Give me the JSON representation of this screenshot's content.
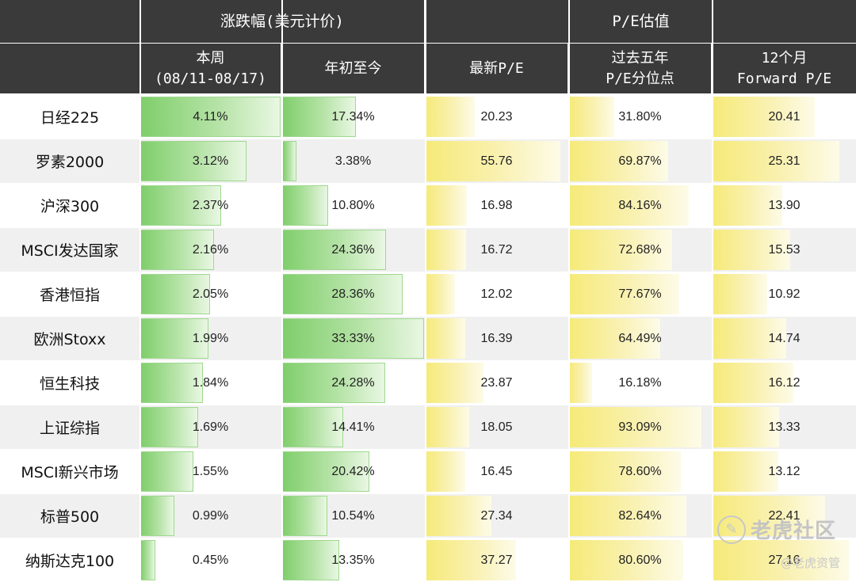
{
  "headers": {
    "group_change": "涨跌幅(美元计价)",
    "group_pe": "P/E估值",
    "col_week_line1": "本周",
    "col_week_line2": "(08/11-08/17)",
    "col_ytd": "年初至今",
    "col_latest_pe": "最新P/E",
    "col_pct_line1": "过去五年",
    "col_pct_line2": "P/E分位点",
    "col_fwd_line1": "12个月",
    "col_fwd_line2": "Forward P/E"
  },
  "colors": {
    "header_bg": "#3a3a3a",
    "green_bar": "#7fce6b",
    "yellow_bar": "#f6ea78",
    "row_alt": "#f0f0f0"
  },
  "chart_data": {
    "type": "table",
    "columns": [
      "本周 (08/11-08/17)",
      "年初至今",
      "最新P/E",
      "过去五年 P/E分位点",
      "12个月 Forward P/E"
    ],
    "rows": [
      {
        "index": "日经225",
        "week": "4.11%",
        "ytd": "17.34%",
        "pe": "20.23",
        "pct": "31.80%",
        "fwd": "20.41",
        "week_v": 4.11,
        "ytd_v": 17.34,
        "pe_v": 20.23,
        "pct_v": 31.8,
        "fwd_v": 20.41
      },
      {
        "index": "罗素2000",
        "week": "3.12%",
        "ytd": "3.38%",
        "pe": "55.76",
        "pct": "69.87%",
        "fwd": "25.31",
        "week_v": 3.12,
        "ytd_v": 3.38,
        "pe_v": 55.76,
        "pct_v": 69.87,
        "fwd_v": 25.31
      },
      {
        "index": "沪深300",
        "week": "2.37%",
        "ytd": "10.80%",
        "pe": "16.98",
        "pct": "84.16%",
        "fwd": "13.90",
        "week_v": 2.37,
        "ytd_v": 10.8,
        "pe_v": 16.98,
        "pct_v": 84.16,
        "fwd_v": 13.9
      },
      {
        "index": "MSCI发达国家",
        "week": "2.16%",
        "ytd": "24.36%",
        "pe": "16.72",
        "pct": "72.68%",
        "fwd": "15.53",
        "week_v": 2.16,
        "ytd_v": 24.36,
        "pe_v": 16.72,
        "pct_v": 72.68,
        "fwd_v": 15.53
      },
      {
        "index": "香港恒指",
        "week": "2.05%",
        "ytd": "28.36%",
        "pe": "12.02",
        "pct": "77.67%",
        "fwd": "10.92",
        "week_v": 2.05,
        "ytd_v": 28.36,
        "pe_v": 12.02,
        "pct_v": 77.67,
        "fwd_v": 10.92
      },
      {
        "index": "欧洲Stoxx",
        "week": "1.99%",
        "ytd": "33.33%",
        "pe": "16.39",
        "pct": "64.49%",
        "fwd": "14.74",
        "week_v": 1.99,
        "ytd_v": 33.33,
        "pe_v": 16.39,
        "pct_v": 64.49,
        "fwd_v": 14.74
      },
      {
        "index": "恒生科技",
        "week": "1.84%",
        "ytd": "24.28%",
        "pe": "23.87",
        "pct": "16.18%",
        "fwd": "16.12",
        "week_v": 1.84,
        "ytd_v": 24.28,
        "pe_v": 23.87,
        "pct_v": 16.18,
        "fwd_v": 16.12
      },
      {
        "index": "上证综指",
        "week": "1.69%",
        "ytd": "14.41%",
        "pe": "18.05",
        "pct": "93.09%",
        "fwd": "13.33",
        "week_v": 1.69,
        "ytd_v": 14.41,
        "pe_v": 18.05,
        "pct_v": 93.09,
        "fwd_v": 13.33
      },
      {
        "index": "MSCI新兴市场",
        "week": "1.55%",
        "ytd": "20.42%",
        "pe": "16.45",
        "pct": "78.60%",
        "fwd": "13.12",
        "week_v": 1.55,
        "ytd_v": 20.42,
        "pe_v": 16.45,
        "pct_v": 78.6,
        "fwd_v": 13.12
      },
      {
        "index": "标普500",
        "week": "0.99%",
        "ytd": "10.54%",
        "pe": "27.34",
        "pct": "82.64%",
        "fwd": "22.41",
        "week_v": 0.99,
        "ytd_v": 10.54,
        "pe_v": 27.34,
        "pct_v": 82.64,
        "fwd_v": 22.41
      },
      {
        "index": "纳斯达克100",
        "week": "0.45%",
        "ytd": "13.35%",
        "pe": "37.27",
        "pct": "80.60%",
        "fwd": "27.16",
        "week_v": 0.45,
        "ytd_v": 13.35,
        "pe_v": 37.27,
        "pct_v": 80.6,
        "fwd_v": 27.16
      }
    ]
  },
  "watermark": {
    "brand": "老虎社区",
    "sub": "@老虎资管"
  }
}
